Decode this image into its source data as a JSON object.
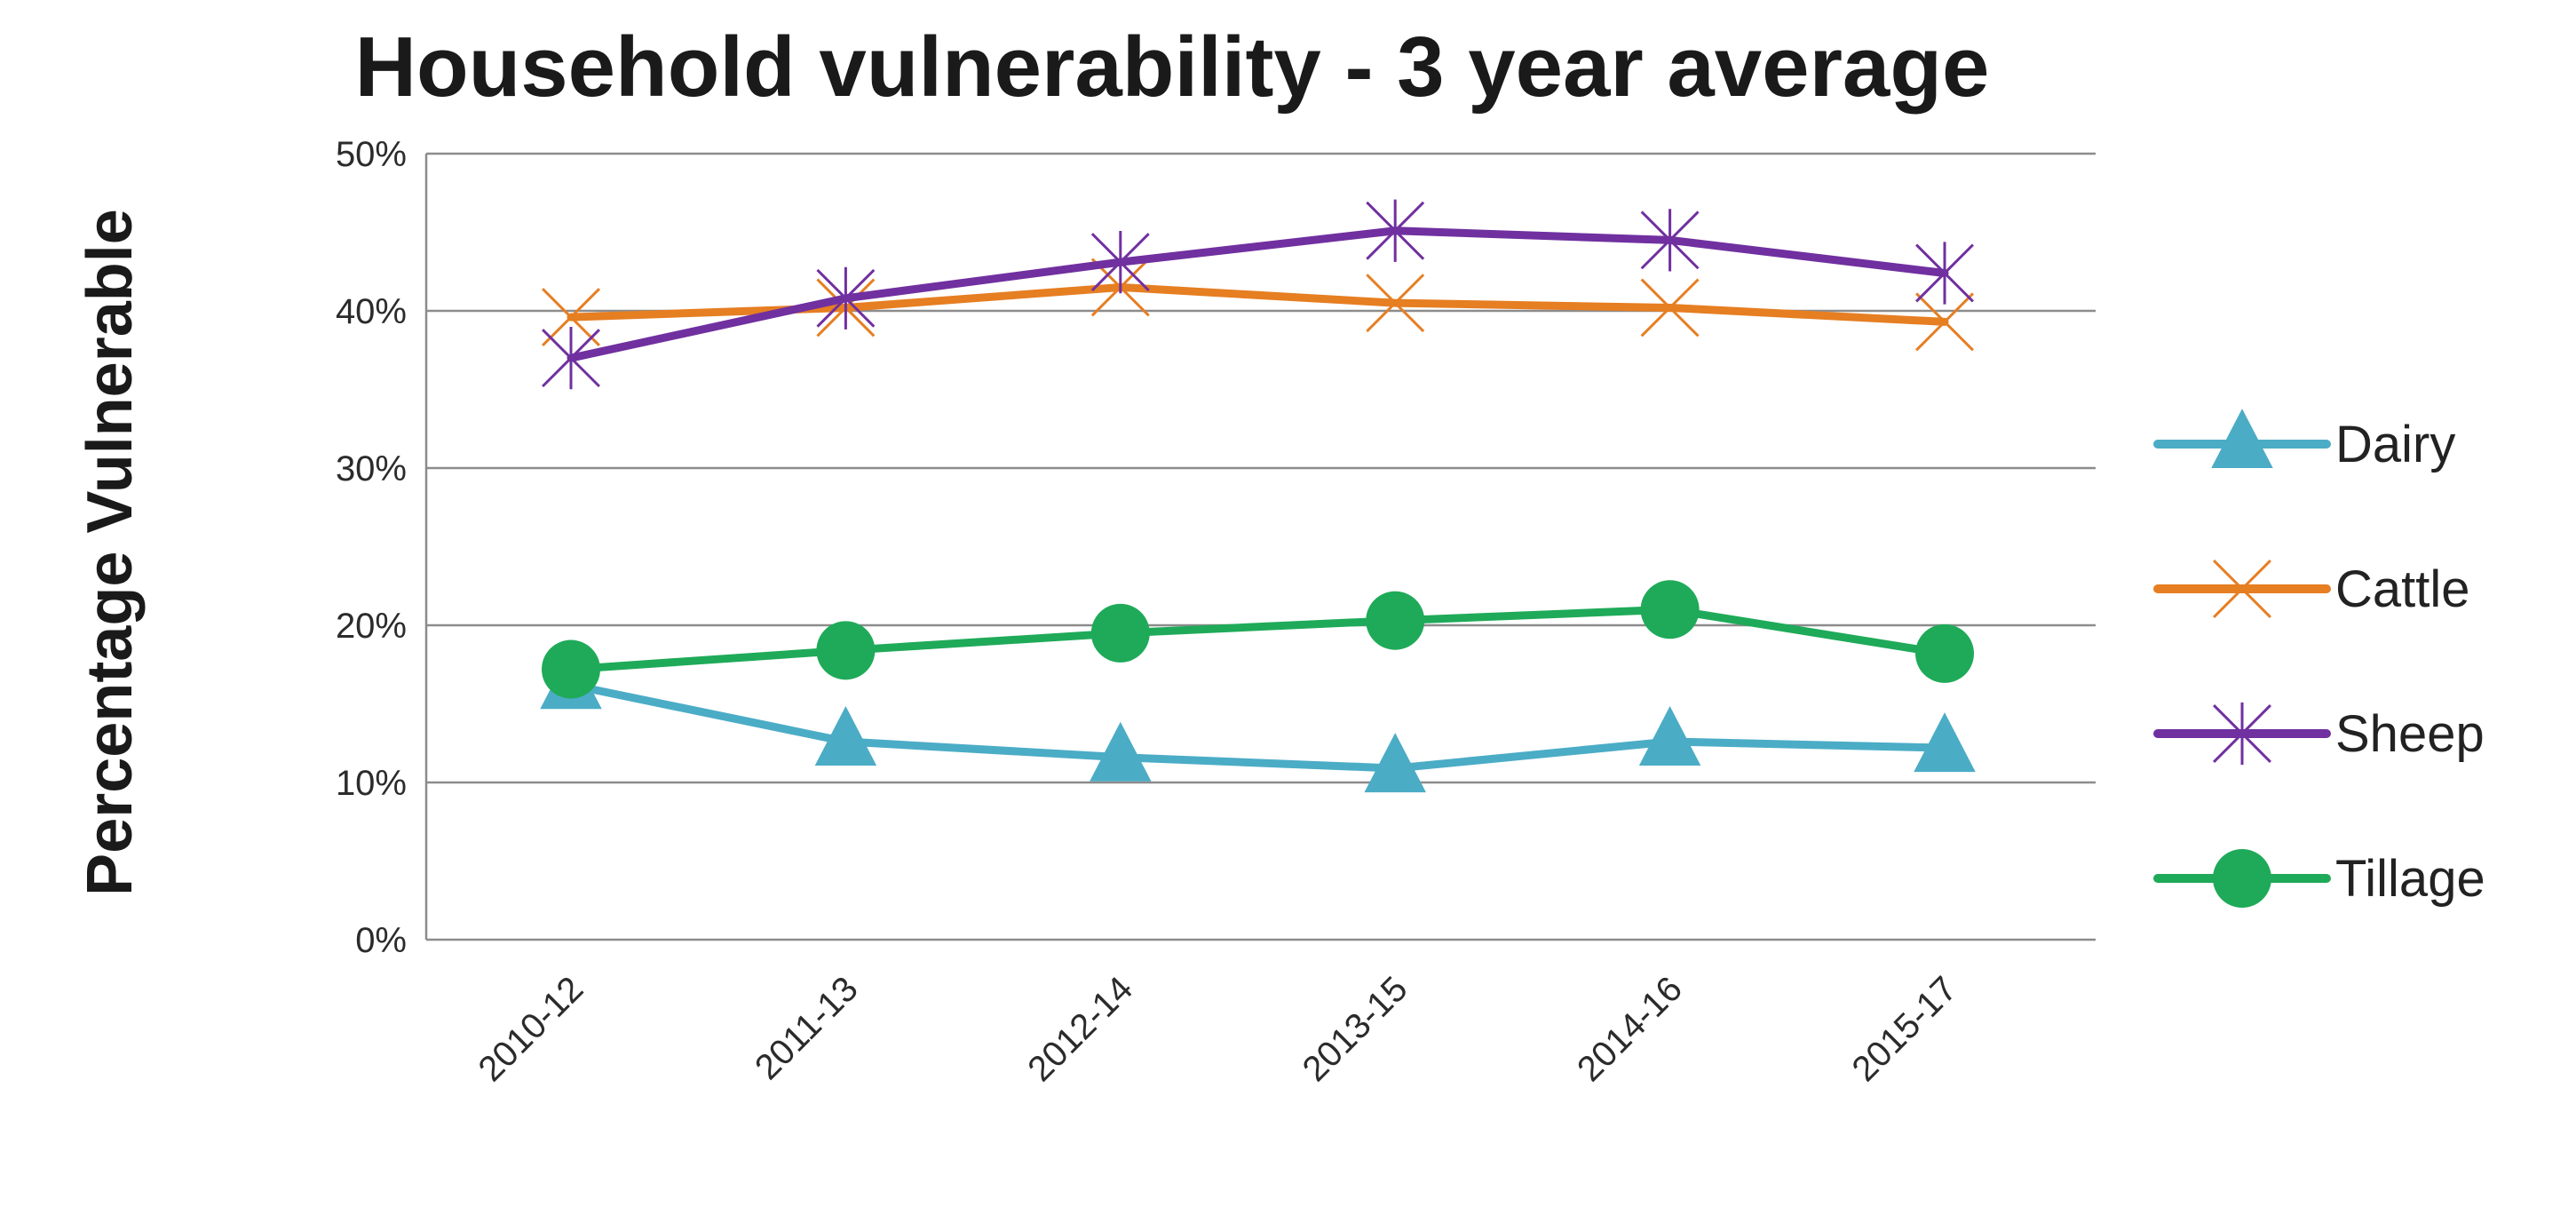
{
  "chart_data": {
    "type": "line",
    "title": "Household vulnerability - 3 year average",
    "ylabel": "Percentage  Vulnerable",
    "xlabel": "",
    "categories": [
      "2010-12",
      "2011-13",
      "2012-14",
      "2013-15",
      "2014-16",
      "2015-17"
    ],
    "ylim": [
      0,
      50
    ],
    "y_ticks": [
      0,
      10,
      20,
      30,
      40,
      50
    ],
    "y_tick_labels": [
      "0%",
      "10%",
      "20%",
      "30%",
      "40%",
      "50%"
    ],
    "grid": "horizontal",
    "legend_position": "right",
    "series": [
      {
        "name": "Dairy",
        "marker": "triangle",
        "color": "#4BACC6",
        "values": [
          16.2,
          12.6,
          11.6,
          10.9,
          12.6,
          12.2
        ]
      },
      {
        "name": "Cattle",
        "marker": "x",
        "color": "#E67E22",
        "values": [
          39.6,
          40.2,
          41.5,
          40.5,
          40.2,
          39.3
        ]
      },
      {
        "name": "Sheep",
        "marker": "star",
        "color": "#7030A0",
        "values": [
          37.0,
          40.8,
          43.1,
          45.1,
          44.5,
          42.4
        ]
      },
      {
        "name": "Tillage",
        "marker": "circle",
        "color": "#1FAA59",
        "values": [
          17.2,
          18.4,
          19.5,
          20.3,
          21.0,
          18.2
        ]
      }
    ]
  }
}
